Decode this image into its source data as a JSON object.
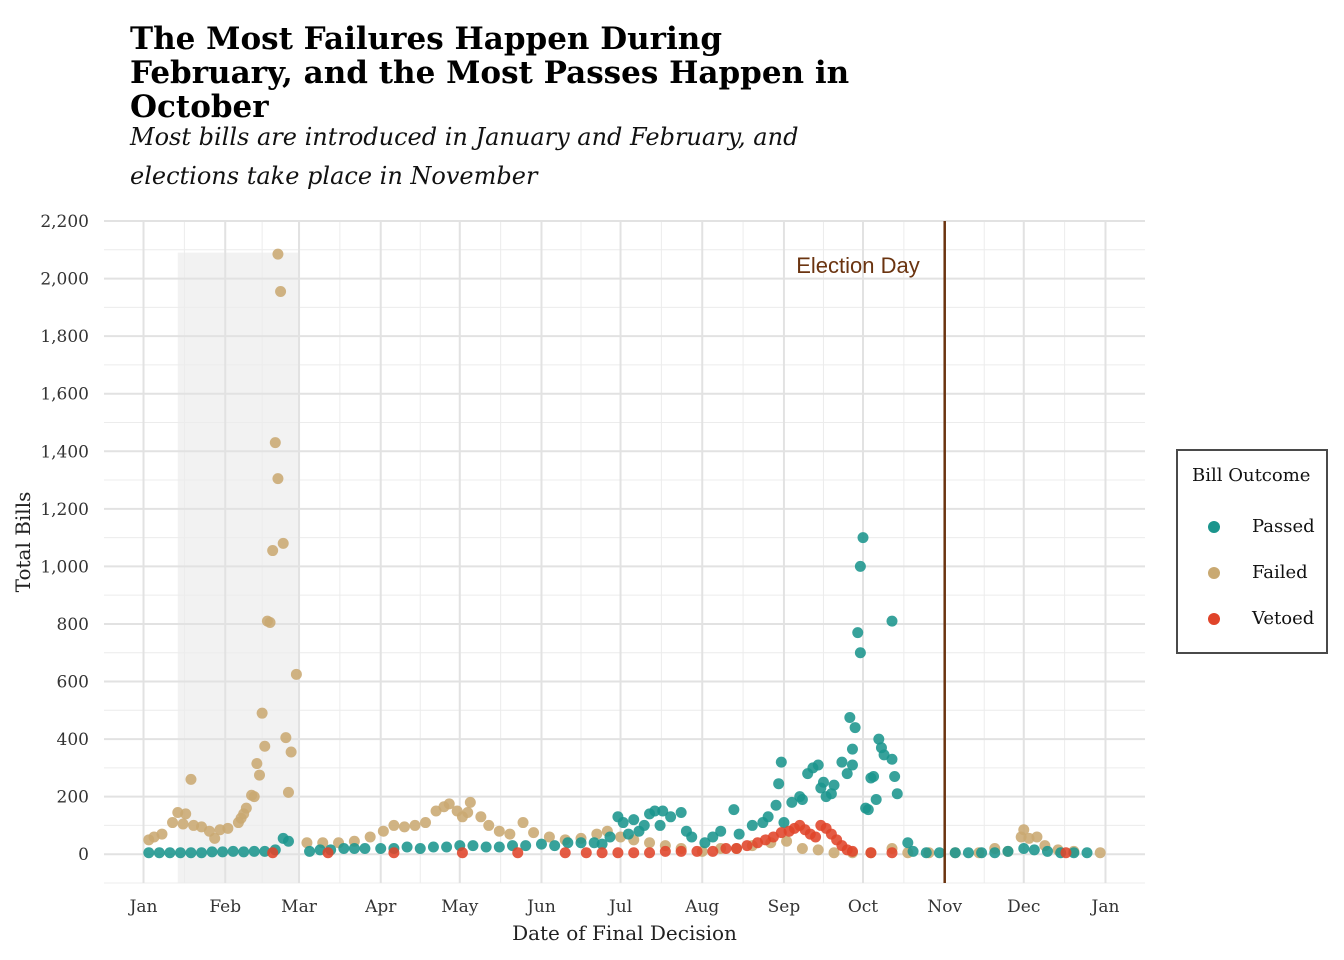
{
  "title": "The Most Failures Happen During February, and the Most Passes Happen in October",
  "subtitle": "Most bills are introduced in January and February, and elections take place in November",
  "chart_data": {
    "type": "scatter",
    "xlabel": "Date of Final Decision",
    "ylabel": "Total Bills",
    "x_ticks": [
      "Jan",
      "Feb",
      "Mar",
      "Apr",
      "May",
      "Jun",
      "Jul",
      "Aug",
      "Sep",
      "Oct",
      "Nov",
      "Dec",
      "Jan"
    ],
    "y_ticks": [
      "0",
      "200",
      "400",
      "600",
      "800",
      "1,000",
      "1,200",
      "1,400",
      "1,600",
      "1,800",
      "2,000",
      "2,200"
    ],
    "ylim": [
      -100,
      2200
    ],
    "xlim_days": [
      -15,
      380
    ],
    "grid": true,
    "shaded_region": {
      "from": "2017-01-14",
      "to": "2017-03-01"
    },
    "annotation": {
      "label": "Election Day",
      "x": "2017-11-01"
    },
    "legend": {
      "title": "Bill Outcome",
      "placement": "right"
    },
    "colors": {
      "Passed": "#1b958d",
      "Failed": "#c9a972",
      "Vetoed": "#e0442a",
      "election_line": "#6b3410",
      "shade": "#f2f2f2"
    },
    "series": [
      {
        "name": "Passed",
        "points": [
          [
            "2017-10-01",
            1100
          ],
          [
            "2017-09-30",
            1000
          ],
          [
            "2017-09-29",
            770
          ],
          [
            "2017-09-30",
            700
          ],
          [
            "2017-10-12",
            810
          ],
          [
            "2017-09-26",
            475
          ],
          [
            "2017-09-28",
            440
          ],
          [
            "2017-10-07",
            400
          ],
          [
            "2017-10-08",
            370
          ],
          [
            "2017-10-09",
            345
          ],
          [
            "2017-10-12",
            330
          ],
          [
            "2017-09-27",
            365
          ],
          [
            "2017-09-25",
            280
          ],
          [
            "2017-09-27",
            310
          ],
          [
            "2017-10-05",
            270
          ],
          [
            "2017-10-04",
            265
          ],
          [
            "2017-10-13",
            270
          ],
          [
            "2017-10-14",
            210
          ],
          [
            "2017-10-06",
            190
          ],
          [
            "2017-10-02",
            160
          ],
          [
            "2017-10-03",
            155
          ],
          [
            "2017-09-23",
            320
          ],
          [
            "2017-09-20",
            240
          ],
          [
            "2017-09-16",
            250
          ],
          [
            "2017-09-15",
            230
          ],
          [
            "2017-09-17",
            200
          ],
          [
            "2017-09-19",
            210
          ],
          [
            "2017-09-14",
            310
          ],
          [
            "2017-09-12",
            300
          ],
          [
            "2017-09-10",
            280
          ],
          [
            "2017-09-07",
            200
          ],
          [
            "2017-09-08",
            190
          ],
          [
            "2017-09-04",
            180
          ],
          [
            "2017-08-31",
            320
          ],
          [
            "2017-08-30",
            245
          ],
          [
            "2017-09-01",
            110
          ],
          [
            "2017-08-29",
            170
          ],
          [
            "2017-08-26",
            130
          ],
          [
            "2017-08-24",
            110
          ],
          [
            "2017-08-20",
            100
          ],
          [
            "2017-08-15",
            70
          ],
          [
            "2017-08-13",
            155
          ],
          [
            "2017-08-08",
            80
          ],
          [
            "2017-08-05",
            60
          ],
          [
            "2017-07-24",
            145
          ],
          [
            "2017-07-20",
            130
          ],
          [
            "2017-07-17",
            150
          ],
          [
            "2017-07-14",
            150
          ],
          [
            "2017-07-12",
            140
          ],
          [
            "2017-07-10",
            100
          ],
          [
            "2017-07-06",
            120
          ],
          [
            "2017-06-30",
            130
          ],
          [
            "2017-07-02",
            110
          ],
          [
            "2017-07-04",
            70
          ],
          [
            "2017-07-08",
            80
          ],
          [
            "2017-07-16",
            100
          ],
          [
            "2017-07-26",
            80
          ],
          [
            "2017-07-28",
            60
          ],
          [
            "2017-08-02",
            40
          ],
          [
            "2017-06-27",
            60
          ],
          [
            "2017-10-18",
            40
          ],
          [
            "2017-10-20",
            10
          ],
          [
            "2017-10-25",
            5
          ],
          [
            "2017-10-30",
            5
          ],
          [
            "2017-11-05",
            5
          ],
          [
            "2017-11-10",
            5
          ],
          [
            "2017-11-15",
            5
          ],
          [
            "2017-11-20",
            5
          ],
          [
            "2017-11-25",
            10
          ],
          [
            "2017-12-01",
            20
          ],
          [
            "2017-12-05",
            15
          ],
          [
            "2017-12-10",
            10
          ],
          [
            "2017-12-15",
            5
          ],
          [
            "2017-12-20",
            5
          ],
          [
            "2017-12-25",
            5
          ],
          [
            "2017-02-23",
            55
          ],
          [
            "2017-02-25",
            45
          ],
          [
            "2017-02-20",
            15
          ],
          [
            "2017-02-16",
            10
          ],
          [
            "2017-02-12",
            10
          ],
          [
            "2017-02-08",
            8
          ],
          [
            "2017-02-04",
            10
          ],
          [
            "2017-01-31",
            8
          ],
          [
            "2017-01-27",
            8
          ],
          [
            "2017-01-23",
            5
          ],
          [
            "2017-01-19",
            5
          ],
          [
            "2017-01-15",
            5
          ],
          [
            "2017-01-11",
            5
          ],
          [
            "2017-01-07",
            5
          ],
          [
            "2017-01-03",
            5
          ],
          [
            "2017-03-05",
            10
          ],
          [
            "2017-03-09",
            15
          ],
          [
            "2017-03-13",
            15
          ],
          [
            "2017-03-18",
            20
          ],
          [
            "2017-03-22",
            20
          ],
          [
            "2017-03-26",
            20
          ],
          [
            "2017-04-01",
            20
          ],
          [
            "2017-04-06",
            20
          ],
          [
            "2017-04-11",
            25
          ],
          [
            "2017-04-16",
            20
          ],
          [
            "2017-04-21",
            25
          ],
          [
            "2017-04-26",
            25
          ],
          [
            "2017-05-01",
            30
          ],
          [
            "2017-05-06",
            30
          ],
          [
            "2017-05-11",
            25
          ],
          [
            "2017-05-16",
            25
          ],
          [
            "2017-05-21",
            30
          ],
          [
            "2017-05-26",
            30
          ],
          [
            "2017-06-01",
            35
          ],
          [
            "2017-06-06",
            30
          ],
          [
            "2017-06-11",
            40
          ],
          [
            "2017-06-16",
            40
          ],
          [
            "2017-06-21",
            40
          ],
          [
            "2017-06-24",
            35
          ]
        ]
      },
      {
        "name": "Failed",
        "points": [
          [
            "2017-02-21",
            2085
          ],
          [
            "2017-02-22",
            1955
          ],
          [
            "2017-02-20",
            1430
          ],
          [
            "2017-02-21",
            1305
          ],
          [
            "2017-02-23",
            1080
          ],
          [
            "2017-02-19",
            1055
          ],
          [
            "2017-02-17",
            810
          ],
          [
            "2017-02-18",
            805
          ],
          [
            "2017-02-28",
            625
          ],
          [
            "2017-02-15",
            490
          ],
          [
            "2017-02-24",
            405
          ],
          [
            "2017-02-16",
            375
          ],
          [
            "2017-02-26",
            355
          ],
          [
            "2017-02-13",
            315
          ],
          [
            "2017-02-14",
            275
          ],
          [
            "2017-02-25",
            215
          ],
          [
            "2017-02-11",
            205
          ],
          [
            "2017-02-12",
            200
          ],
          [
            "2017-02-09",
            160
          ],
          [
            "2017-02-08",
            140
          ],
          [
            "2017-02-07",
            125
          ],
          [
            "2017-02-06",
            110
          ],
          [
            "2017-01-19",
            260
          ],
          [
            "2017-01-14",
            145
          ],
          [
            "2017-01-17",
            140
          ],
          [
            "2017-01-12",
            110
          ],
          [
            "2017-01-16",
            105
          ],
          [
            "2017-01-20",
            100
          ],
          [
            "2017-01-23",
            95
          ],
          [
            "2017-01-26",
            80
          ],
          [
            "2017-01-30",
            85
          ],
          [
            "2017-02-02",
            90
          ],
          [
            "2017-01-03",
            50
          ],
          [
            "2017-01-05",
            60
          ],
          [
            "2017-01-08",
            70
          ],
          [
            "2017-01-28",
            55
          ],
          [
            "2017-03-04",
            40
          ],
          [
            "2017-03-10",
            40
          ],
          [
            "2017-03-16",
            40
          ],
          [
            "2017-03-22",
            45
          ],
          [
            "2017-03-28",
            60
          ],
          [
            "2017-04-02",
            80
          ],
          [
            "2017-04-06",
            100
          ],
          [
            "2017-04-10",
            95
          ],
          [
            "2017-04-14",
            100
          ],
          [
            "2017-04-18",
            110
          ],
          [
            "2017-04-22",
            150
          ],
          [
            "2017-04-25",
            165
          ],
          [
            "2017-04-27",
            175
          ],
          [
            "2017-04-30",
            150
          ],
          [
            "2017-05-02",
            130
          ],
          [
            "2017-05-04",
            145
          ],
          [
            "2017-05-05",
            180
          ],
          [
            "2017-05-09",
            130
          ],
          [
            "2017-05-12",
            100
          ],
          [
            "2017-05-16",
            80
          ],
          [
            "2017-05-20",
            70
          ],
          [
            "2017-05-25",
            110
          ],
          [
            "2017-05-29",
            75
          ],
          [
            "2017-06-04",
            60
          ],
          [
            "2017-06-10",
            50
          ],
          [
            "2017-06-16",
            55
          ],
          [
            "2017-06-22",
            70
          ],
          [
            "2017-06-26",
            80
          ],
          [
            "2017-07-01",
            60
          ],
          [
            "2017-07-06",
            50
          ],
          [
            "2017-07-12",
            40
          ],
          [
            "2017-07-18",
            30
          ],
          [
            "2017-07-24",
            20
          ],
          [
            "2017-08-01",
            10
          ],
          [
            "2017-08-08",
            20
          ],
          [
            "2017-08-14",
            20
          ],
          [
            "2017-08-20",
            30
          ],
          [
            "2017-08-27",
            40
          ],
          [
            "2017-09-02",
            45
          ],
          [
            "2017-09-08",
            20
          ],
          [
            "2017-09-14",
            15
          ],
          [
            "2017-09-20",
            5
          ],
          [
            "2017-09-27",
            5
          ],
          [
            "2017-10-04",
            5
          ],
          [
            "2017-10-12",
            20
          ],
          [
            "2017-10-18",
            5
          ],
          [
            "2017-10-26",
            5
          ],
          [
            "2017-11-05",
            5
          ],
          [
            "2017-11-14",
            5
          ],
          [
            "2017-11-20",
            20
          ],
          [
            "2017-11-25",
            10
          ],
          [
            "2017-11-30",
            60
          ],
          [
            "2017-12-01",
            85
          ],
          [
            "2017-12-03",
            55
          ],
          [
            "2017-12-06",
            60
          ],
          [
            "2017-12-09",
            30
          ],
          [
            "2017-12-14",
            15
          ],
          [
            "2017-12-20",
            10
          ],
          [
            "2017-12-30",
            5
          ]
        ]
      },
      {
        "name": "Vetoed",
        "points": [
          [
            "2017-02-19",
            5
          ],
          [
            "2017-03-12",
            5
          ],
          [
            "2017-04-06",
            5
          ],
          [
            "2017-05-02",
            5
          ],
          [
            "2017-05-23",
            5
          ],
          [
            "2017-06-10",
            5
          ],
          [
            "2017-06-18",
            5
          ],
          [
            "2017-06-24",
            5
          ],
          [
            "2017-06-30",
            5
          ],
          [
            "2017-07-06",
            5
          ],
          [
            "2017-07-12",
            5
          ],
          [
            "2017-07-18",
            10
          ],
          [
            "2017-07-24",
            10
          ],
          [
            "2017-07-30",
            10
          ],
          [
            "2017-08-05",
            10
          ],
          [
            "2017-08-10",
            20
          ],
          [
            "2017-08-14",
            20
          ],
          [
            "2017-08-18",
            30
          ],
          [
            "2017-08-22",
            40
          ],
          [
            "2017-08-25",
            50
          ],
          [
            "2017-08-28",
            60
          ],
          [
            "2017-08-31",
            75
          ],
          [
            "2017-09-03",
            80
          ],
          [
            "2017-09-05",
            90
          ],
          [
            "2017-09-07",
            100
          ],
          [
            "2017-09-09",
            85
          ],
          [
            "2017-09-11",
            70
          ],
          [
            "2017-09-13",
            60
          ],
          [
            "2017-09-15",
            100
          ],
          [
            "2017-09-17",
            90
          ],
          [
            "2017-09-19",
            70
          ],
          [
            "2017-09-21",
            50
          ],
          [
            "2017-09-23",
            30
          ],
          [
            "2017-09-25",
            15
          ],
          [
            "2017-09-27",
            10
          ],
          [
            "2017-10-04",
            5
          ],
          [
            "2017-10-12",
            5
          ],
          [
            "2017-12-17",
            5
          ]
        ]
      }
    ]
  }
}
